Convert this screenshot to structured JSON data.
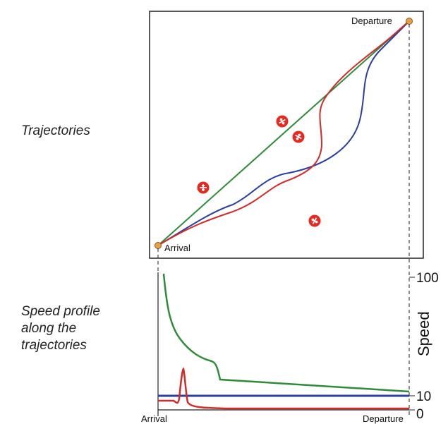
{
  "labels": {
    "trajectories": "Trajectories",
    "speed_profile": "Speed profile along the trajectories"
  },
  "map": {
    "departure_label": "Departure",
    "arrival_label": "Arrival"
  },
  "speed_axis": {
    "title": "Speed",
    "ticks": [
      "100",
      "10",
      "0"
    ],
    "x_start_label": "Arrival",
    "x_end_label": "Departure"
  },
  "colors": {
    "green": "#2e8b3a",
    "red": "#d42a2a",
    "blue": "#2a3fa0",
    "endpoint": "#e8a040",
    "plane": "#e8281e"
  },
  "aircraft_icons": [
    "airplane-icon",
    "airplane-icon",
    "airplane-icon",
    "airplane-icon",
    "airplane-icon"
  ]
}
